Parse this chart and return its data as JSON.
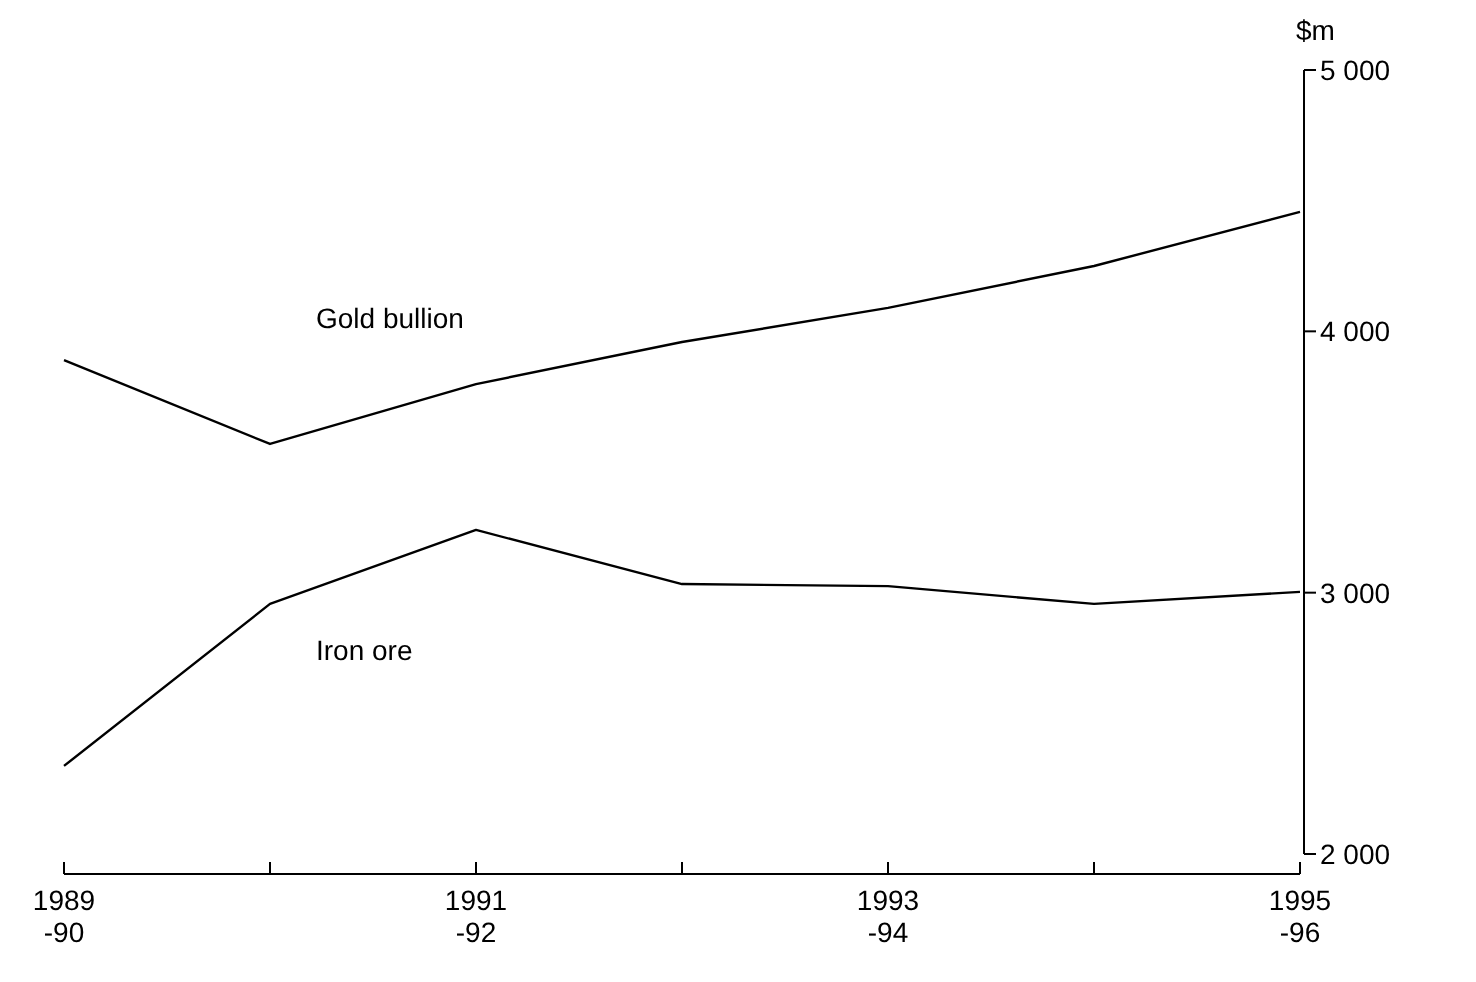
{
  "chart_data": {
    "type": "line",
    "ylabel": "$m",
    "categories": [
      "1989\n-90",
      null,
      "1991\n-92",
      null,
      "1993\n-94",
      null,
      "1995\n-96"
    ],
    "series": [
      {
        "name": "Gold bullion",
        "color": "#000000",
        "values": [
          3890,
          3569,
          3798,
          3959,
          4090,
          4250,
          4457
        ]
      },
      {
        "name": "Iron ore",
        "color": "#000000",
        "values": [
          2337,
          2957,
          3240,
          3033,
          3025,
          2957,
          3003
        ]
      }
    ],
    "ylim": [
      2000,
      5000
    ],
    "yticks": [
      {
        "value": 2000,
        "label": "2 000"
      },
      {
        "value": 3000,
        "label": "3 000"
      },
      {
        "value": 4000,
        "label": "4 000"
      },
      {
        "value": 5000,
        "label": "5 000"
      }
    ],
    "grid": false,
    "marker": "none",
    "line_style": "solid"
  }
}
